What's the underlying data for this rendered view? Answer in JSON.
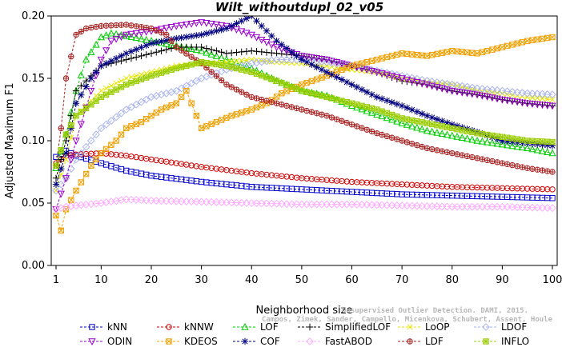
{
  "chart_data": {
    "type": "line",
    "title": "Wilt_withoutdupl_02_v05",
    "xlabel": "Neighborhood size",
    "ylabel": "Adjusted Maximum F1",
    "xlim": [
      1,
      100
    ],
    "ylim": [
      0,
      0.2
    ],
    "xticks": [
      1,
      10,
      20,
      30,
      40,
      50,
      60,
      70,
      80,
      90,
      100
    ],
    "yticks": [
      0,
      0.05,
      0.1,
      0.15,
      0.2
    ],
    "ytick_labels": [
      "0.00",
      "0.05",
      "0.10",
      "0.15",
      "0.20"
    ],
    "grid": false,
    "legend_position": "bottom",
    "credit": {
      "line1": "Unsupervised Outlier Detection. DAMI, 2015.",
      "line2": "Campos, Zimek, Sander, Campello, Micenkova, Schubert, Assent, Houle"
    },
    "series": [
      {
        "name": "kNN",
        "color": "#0000cc",
        "marker": "square",
        "points": [
          [
            1,
            0.087
          ],
          [
            3,
            0.092
          ],
          [
            5,
            0.088
          ],
          [
            10,
            0.082
          ],
          [
            15,
            0.076
          ],
          [
            20,
            0.072
          ],
          [
            30,
            0.067
          ],
          [
            40,
            0.063
          ],
          [
            50,
            0.061
          ],
          [
            60,
            0.059
          ],
          [
            70,
            0.057
          ],
          [
            80,
            0.056
          ],
          [
            90,
            0.055
          ],
          [
            100,
            0.054
          ]
        ]
      },
      {
        "name": "kNNW",
        "color": "#cc0000",
        "marker": "circle",
        "points": [
          [
            1,
            0.082
          ],
          [
            3,
            0.088
          ],
          [
            5,
            0.089
          ],
          [
            10,
            0.09
          ],
          [
            15,
            0.088
          ],
          [
            20,
            0.085
          ],
          [
            30,
            0.079
          ],
          [
            40,
            0.074
          ],
          [
            50,
            0.07
          ],
          [
            60,
            0.067
          ],
          [
            70,
            0.065
          ],
          [
            80,
            0.063
          ],
          [
            90,
            0.062
          ],
          [
            100,
            0.061
          ]
        ]
      },
      {
        "name": "LOF",
        "color": "#00cc00",
        "marker": "triangle-up",
        "points": [
          [
            1,
            0.078
          ],
          [
            3,
            0.105
          ],
          [
            5,
            0.14
          ],
          [
            7,
            0.165
          ],
          [
            10,
            0.183
          ],
          [
            12,
            0.186
          ],
          [
            15,
            0.184
          ],
          [
            20,
            0.18
          ],
          [
            25,
            0.176
          ],
          [
            30,
            0.172
          ],
          [
            35,
            0.165
          ],
          [
            40,
            0.158
          ],
          [
            45,
            0.148
          ],
          [
            50,
            0.14
          ],
          [
            55,
            0.136
          ],
          [
            60,
            0.128
          ],
          [
            65,
            0.121
          ],
          [
            70,
            0.114
          ],
          [
            75,
            0.108
          ],
          [
            80,
            0.104
          ],
          [
            85,
            0.1
          ],
          [
            90,
            0.097
          ],
          [
            95,
            0.094
          ],
          [
            100,
            0.09
          ]
        ]
      },
      {
        "name": "SimplifiedLOF",
        "color": "#000000",
        "marker": "plus",
        "points": [
          [
            1,
            0.07
          ],
          [
            3,
            0.1
          ],
          [
            5,
            0.14
          ],
          [
            10,
            0.16
          ],
          [
            15,
            0.165
          ],
          [
            20,
            0.17
          ],
          [
            25,
            0.175
          ],
          [
            30,
            0.175
          ],
          [
            35,
            0.17
          ],
          [
            40,
            0.172
          ],
          [
            45,
            0.17
          ],
          [
            50,
            0.168
          ],
          [
            55,
            0.165
          ],
          [
            60,
            0.16
          ],
          [
            65,
            0.155
          ],
          [
            70,
            0.148
          ],
          [
            75,
            0.145
          ],
          [
            80,
            0.14
          ],
          [
            85,
            0.137
          ],
          [
            90,
            0.133
          ],
          [
            95,
            0.13
          ],
          [
            100,
            0.128
          ]
        ]
      },
      {
        "name": "LoOP",
        "color": "#e6e600",
        "marker": "x",
        "points": [
          [
            1,
            0.06
          ],
          [
            3,
            0.085
          ],
          [
            5,
            0.12
          ],
          [
            10,
            0.14
          ],
          [
            15,
            0.15
          ],
          [
            20,
            0.155
          ],
          [
            25,
            0.16
          ],
          [
            30,
            0.162
          ],
          [
            35,
            0.163
          ],
          [
            40,
            0.165
          ],
          [
            45,
            0.163
          ],
          [
            50,
            0.162
          ],
          [
            55,
            0.16
          ],
          [
            60,
            0.157
          ],
          [
            65,
            0.155
          ],
          [
            70,
            0.15
          ],
          [
            75,
            0.147
          ],
          [
            80,
            0.145
          ],
          [
            85,
            0.14
          ],
          [
            90,
            0.138
          ],
          [
            95,
            0.135
          ],
          [
            100,
            0.133
          ]
        ]
      },
      {
        "name": "LDOF",
        "color": "#aab4ee",
        "marker": "diamond",
        "points": [
          [
            1,
            0.06
          ],
          [
            3,
            0.07
          ],
          [
            5,
            0.085
          ],
          [
            10,
            0.11
          ],
          [
            15,
            0.125
          ],
          [
            20,
            0.135
          ],
          [
            25,
            0.14
          ],
          [
            30,
            0.15
          ],
          [
            35,
            0.157
          ],
          [
            40,
            0.162
          ],
          [
            45,
            0.165
          ],
          [
            50,
            0.165
          ],
          [
            55,
            0.163
          ],
          [
            60,
            0.16
          ],
          [
            65,
            0.156
          ],
          [
            70,
            0.152
          ],
          [
            75,
            0.148
          ],
          [
            80,
            0.145
          ],
          [
            85,
            0.142
          ],
          [
            90,
            0.14
          ],
          [
            95,
            0.138
          ],
          [
            100,
            0.137
          ]
        ]
      },
      {
        "name": "ODIN",
        "color": "#9900cc",
        "marker": "triangle-down",
        "points": [
          [
            1,
            0.045
          ],
          [
            3,
            0.07
          ],
          [
            5,
            0.1
          ],
          [
            8,
            0.14
          ],
          [
            10,
            0.165
          ],
          [
            12,
            0.18
          ],
          [
            15,
            0.185
          ],
          [
            20,
            0.188
          ],
          [
            25,
            0.192
          ],
          [
            30,
            0.195
          ],
          [
            35,
            0.192
          ],
          [
            40,
            0.185
          ],
          [
            45,
            0.175
          ],
          [
            50,
            0.168
          ],
          [
            55,
            0.165
          ],
          [
            60,
            0.16
          ],
          [
            65,
            0.155
          ],
          [
            70,
            0.15
          ],
          [
            75,
            0.145
          ],
          [
            80,
            0.14
          ],
          [
            85,
            0.137
          ],
          [
            90,
            0.133
          ],
          [
            95,
            0.13
          ],
          [
            100,
            0.128
          ]
        ]
      },
      {
        "name": "KDEOS",
        "color": "#f0a000",
        "marker": "square-x",
        "points": [
          [
            1,
            0.04
          ],
          [
            2,
            0.028
          ],
          [
            3,
            0.045
          ],
          [
            5,
            0.06
          ],
          [
            8,
            0.08
          ],
          [
            10,
            0.09
          ],
          [
            13,
            0.1
          ],
          [
            15,
            0.11
          ],
          [
            18,
            0.115
          ],
          [
            20,
            0.12
          ],
          [
            22,
            0.125
          ],
          [
            25,
            0.13
          ],
          [
            27,
            0.14
          ],
          [
            30,
            0.11
          ],
          [
            33,
            0.115
          ],
          [
            36,
            0.12
          ],
          [
            40,
            0.125
          ],
          [
            43,
            0.13
          ],
          [
            46,
            0.138
          ],
          [
            50,
            0.145
          ],
          [
            55,
            0.152
          ],
          [
            60,
            0.16
          ],
          [
            65,
            0.165
          ],
          [
            70,
            0.17
          ],
          [
            75,
            0.168
          ],
          [
            80,
            0.172
          ],
          [
            85,
            0.17
          ],
          [
            90,
            0.175
          ],
          [
            95,
            0.18
          ],
          [
            100,
            0.183
          ]
        ]
      },
      {
        "name": "COF",
        "color": "#000080",
        "marker": "asterisk",
        "points": [
          [
            1,
            0.065
          ],
          [
            3,
            0.09
          ],
          [
            5,
            0.13
          ],
          [
            8,
            0.15
          ],
          [
            10,
            0.16
          ],
          [
            15,
            0.17
          ],
          [
            20,
            0.178
          ],
          [
            25,
            0.182
          ],
          [
            30,
            0.185
          ],
          [
            35,
            0.19
          ],
          [
            40,
            0.2
          ],
          [
            45,
            0.18
          ],
          [
            50,
            0.165
          ],
          [
            55,
            0.155
          ],
          [
            60,
            0.145
          ],
          [
            65,
            0.135
          ],
          [
            70,
            0.128
          ],
          [
            75,
            0.12
          ],
          [
            80,
            0.113
          ],
          [
            85,
            0.107
          ],
          [
            90,
            0.1
          ],
          [
            95,
            0.098
          ],
          [
            100,
            0.096
          ]
        ]
      },
      {
        "name": "FastABOD",
        "color": "#ffaaff",
        "marker": "diamond",
        "points": [
          [
            1,
            0.045
          ],
          [
            3,
            0.047
          ],
          [
            5,
            0.048
          ],
          [
            10,
            0.05
          ],
          [
            15,
            0.053
          ],
          [
            20,
            0.052
          ],
          [
            30,
            0.051
          ],
          [
            40,
            0.05
          ],
          [
            50,
            0.049
          ],
          [
            60,
            0.049
          ],
          [
            70,
            0.048
          ],
          [
            80,
            0.047
          ],
          [
            90,
            0.047
          ],
          [
            100,
            0.046
          ]
        ]
      },
      {
        "name": "LDF",
        "color": "#aa2222",
        "marker": "circle-plus",
        "points": [
          [
            1,
            0.08
          ],
          [
            2,
            0.11
          ],
          [
            3,
            0.15
          ],
          [
            5,
            0.185
          ],
          [
            7,
            0.19
          ],
          [
            10,
            0.192
          ],
          [
            15,
            0.193
          ],
          [
            20,
            0.19
          ],
          [
            23,
            0.185
          ],
          [
            25,
            0.175
          ],
          [
            30,
            0.162
          ],
          [
            35,
            0.145
          ],
          [
            40,
            0.135
          ],
          [
            45,
            0.13
          ],
          [
            50,
            0.125
          ],
          [
            55,
            0.12
          ],
          [
            60,
            0.113
          ],
          [
            65,
            0.106
          ],
          [
            70,
            0.1
          ],
          [
            75,
            0.094
          ],
          [
            80,
            0.09
          ],
          [
            85,
            0.086
          ],
          [
            90,
            0.082
          ],
          [
            95,
            0.078
          ],
          [
            100,
            0.075
          ]
        ]
      },
      {
        "name": "INFLO",
        "color": "#99cc00",
        "marker": "square-star",
        "points": [
          [
            1,
            0.08
          ],
          [
            3,
            0.105
          ],
          [
            5,
            0.12
          ],
          [
            10,
            0.135
          ],
          [
            15,
            0.145
          ],
          [
            20,
            0.152
          ],
          [
            25,
            0.158
          ],
          [
            30,
            0.163
          ],
          [
            35,
            0.16
          ],
          [
            40,
            0.155
          ],
          [
            45,
            0.148
          ],
          [
            50,
            0.14
          ],
          [
            55,
            0.135
          ],
          [
            60,
            0.13
          ],
          [
            65,
            0.125
          ],
          [
            70,
            0.118
          ],
          [
            75,
            0.114
          ],
          [
            80,
            0.11
          ],
          [
            85,
            0.106
          ],
          [
            90,
            0.103
          ],
          [
            95,
            0.1
          ],
          [
            100,
            0.099
          ]
        ]
      }
    ]
  }
}
